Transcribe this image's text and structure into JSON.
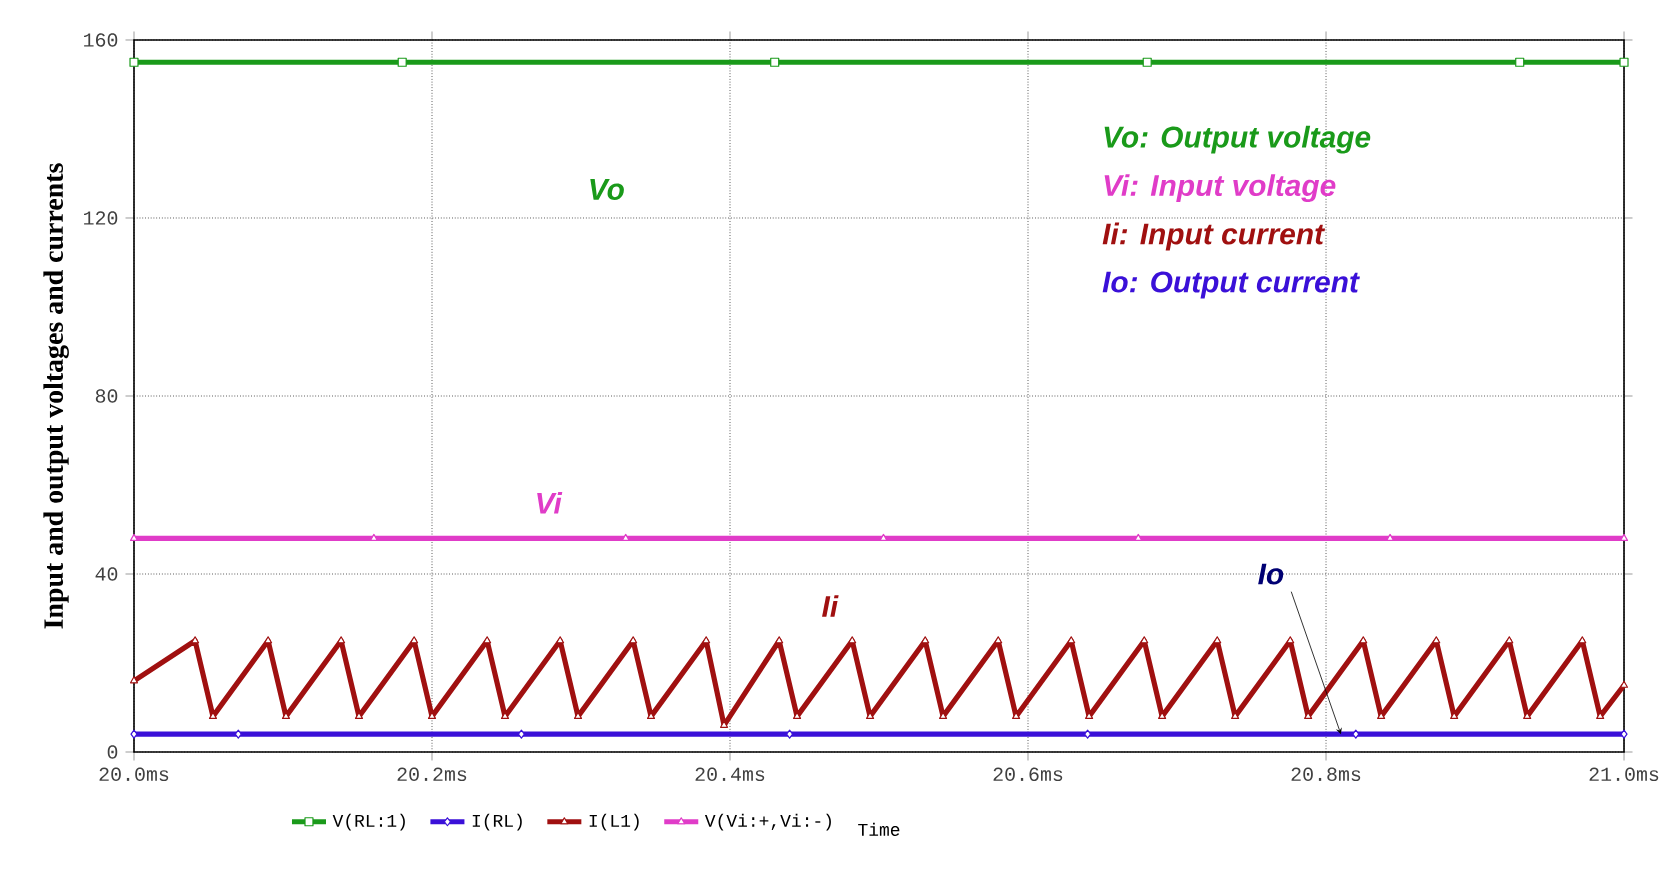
{
  "chart_data": {
    "type": "line",
    "ylabel": "Input and output voltages and currents",
    "xlabel": "Time",
    "xlim": [
      20.0,
      21.0
    ],
    "ylim": [
      0,
      160
    ],
    "xticks": [
      {
        "value": 20.0,
        "label": "20.0ms"
      },
      {
        "value": 20.2,
        "label": "20.2ms"
      },
      {
        "value": 20.4,
        "label": "20.4ms"
      },
      {
        "value": 20.6,
        "label": "20.6ms"
      },
      {
        "value": 20.8,
        "label": "20.8ms"
      },
      {
        "value": 21.0,
        "label": "21.0ms"
      }
    ],
    "yticks": [
      0,
      40,
      80,
      120,
      160
    ],
    "grid": true,
    "legend": "bottom",
    "line_style": "solid",
    "series": [
      {
        "name": "V(RL:1)",
        "color": "#1a9a1a",
        "marker": "square",
        "x": [
          20.0,
          20.18,
          20.43,
          20.68,
          20.93,
          21.0
        ],
        "values": [
          155,
          155,
          155,
          155,
          155,
          155
        ]
      },
      {
        "name": "I(RL)",
        "color": "#3a10d8",
        "marker": "diamond",
        "x": [
          20.0,
          20.07,
          20.26,
          20.44,
          20.64,
          20.82,
          21.0
        ],
        "values": [
          4,
          4,
          4,
          4,
          4,
          4,
          4
        ]
      },
      {
        "name": "I(L1)",
        "color": "#a01010",
        "marker": "triangle",
        "x": [
          20.0,
          20.041,
          20.053,
          20.09,
          20.102,
          20.139,
          20.151,
          20.188,
          20.2,
          20.237,
          20.249,
          20.286,
          20.298,
          20.335,
          20.347,
          20.384,
          20.396,
          20.433,
          20.445,
          20.482,
          20.494,
          20.531,
          20.543,
          20.58,
          20.592,
          20.629,
          20.641,
          20.678,
          20.69,
          20.727,
          20.739,
          20.776,
          20.788,
          20.825,
          20.837,
          20.874,
          20.886,
          20.923,
          20.935,
          20.972,
          20.984,
          21.0
        ],
        "values": [
          16,
          25,
          8,
          25,
          8,
          25,
          8,
          25,
          8,
          25,
          8,
          25,
          8,
          25,
          8,
          25,
          6,
          25,
          8,
          25,
          8,
          25,
          8,
          25,
          8,
          25,
          8,
          25,
          8,
          25,
          8,
          25,
          8,
          25,
          8,
          25,
          8,
          25,
          8,
          25,
          8,
          15
        ]
      },
      {
        "name": "V(Vi:+,Vi:-)",
        "color": "#e03cc8",
        "marker": "triangle",
        "x": [
          20.0,
          20.161,
          20.33,
          20.503,
          20.674,
          20.843,
          21.0
        ],
        "values": [
          48,
          48,
          48,
          48,
          48,
          48,
          48
        ]
      }
    ],
    "annotations": [
      "Vo",
      "Ii",
      "Vi",
      {
        "text": "Io",
        "x": 20.81,
        "y": 4
      },
      "Vo: Output voltage",
      "Vi: Input voltage",
      "Ii: Input current",
      "Io: Output current"
    ]
  }
}
